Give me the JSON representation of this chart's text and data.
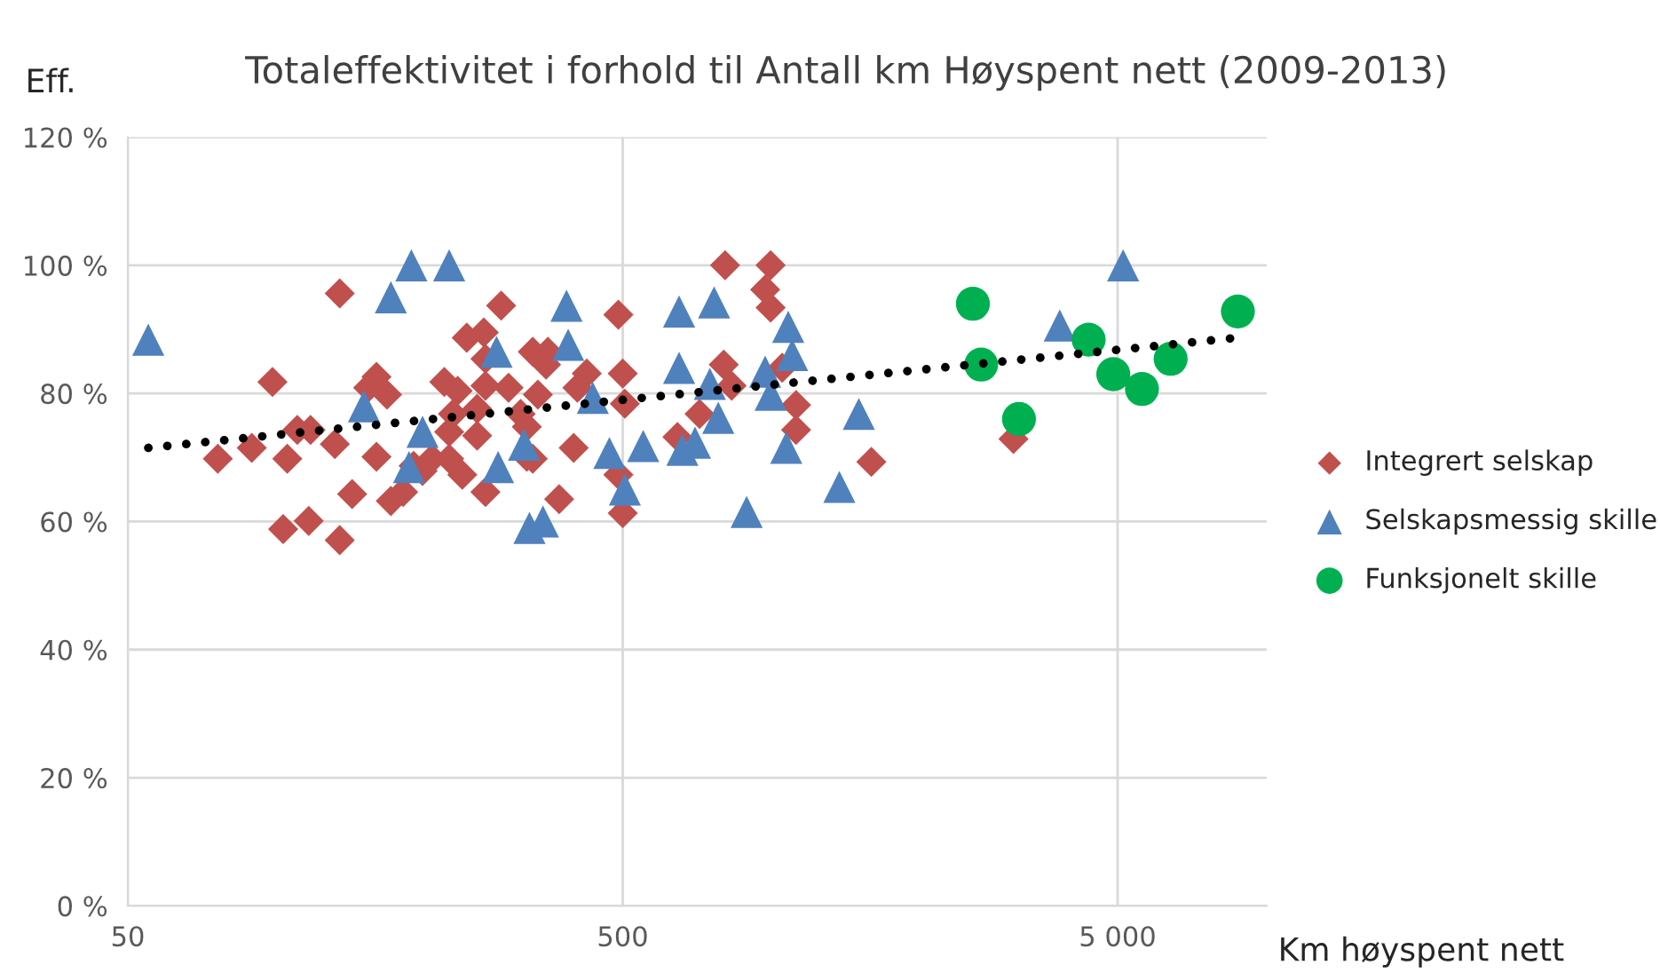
{
  "chart_data": {
    "type": "scatter",
    "title": "Totaleffektivitet i forhold til Antall km Høyspent nett (2009-2013)",
    "xlabel": "Km høyspent nett",
    "ylabel": "Eff.",
    "log": "x",
    "xlim": [
      50,
      10000
    ],
    "xticks": [
      50,
      500,
      {
        "value": 5000,
        "label": "5 000"
      }
    ],
    "ylim": [
      0,
      120
    ],
    "yticks": [
      {
        "value": 0,
        "label": "0 %"
      },
      {
        "value": 20,
        "label": "20 %"
      },
      {
        "value": 40,
        "label": "40 %"
      },
      {
        "value": 60,
        "label": "60 %"
      },
      {
        "value": 80,
        "label": "80 %"
      },
      {
        "value": 100,
        "label": "100 %"
      },
      {
        "value": 120,
        "label": "120 %"
      }
    ],
    "grid": true,
    "legend": "right",
    "series": [
      {
        "name": "Integrert selskap",
        "color": "#c0504d",
        "marker": "diamond",
        "x": [
          134,
          98,
          76,
          89,
          105,
          110,
          117,
          103,
          116,
          134,
          131,
          142,
          159,
          159,
          153,
          167,
          170,
          180,
          189,
          197,
          218,
          232,
          242,
          262,
          284,
          223,
          223,
          237,
          254,
          264,
          264,
          264,
          294,
          311,
          329,
          320,
          337,
          254,
          227,
          206,
          353,
          350,
          320,
          329,
          398,
          423,
          405,
          372,
          490,
          500,
          505,
          490,
          500,
          805,
          995,
          970,
          995,
          800,
          830,
          715,
          645,
          1120,
          1120,
          1590,
          1050,
          3080
        ],
        "values": [
          95.6,
          81.8,
          69.8,
          71.5,
          69.8,
          74.3,
          74.3,
          58.8,
          60.1,
          57.1,
          72.1,
          64.3,
          70.1,
          82.6,
          80.9,
          79.8,
          63.2,
          64.6,
          68.7,
          67.9,
          81.8,
          80.4,
          88.7,
          89.5,
          93.7,
          74,
          69.8,
          67.3,
          73.4,
          64.6,
          85.4,
          81.2,
          80.9,
          76.8,
          86.5,
          70.1,
          79.8,
          77.6,
          76.8,
          69.8,
          86.5,
          84.5,
          74.8,
          69.8,
          71.5,
          83.1,
          80.9,
          63.5,
          92.3,
          83.1,
          78.4,
          67.3,
          61.3,
          100,
          100,
          96.2,
          93.4,
          84.5,
          81.2,
          76.8,
          73.2,
          78.2,
          74.3,
          69.3,
          84,
          72.9
        ]
      },
      {
        "name": "Selskapsmessig skille",
        "color": "#4f81bd",
        "marker": "triangle",
        "x": [
          55,
          187,
          223,
          170,
          150,
          197,
          185,
          280,
          316,
          324,
          345,
          278,
          385,
          388,
          435,
          470,
          505,
          550,
          650,
          765,
          650,
          750,
          660,
          700,
          780,
          890,
          970,
          995,
          1080,
          1100,
          1070,
          1370,
          1500,
          3820,
          5130
        ],
        "values": [
          88.4,
          100,
          100,
          95,
          78,
          74,
          68.5,
          68.5,
          72,
          59,
          60,
          86.5,
          93.7,
          87.6,
          79.3,
          70.7,
          65,
          71.8,
          92.8,
          94.2,
          84,
          81.5,
          71.2,
          72.3,
          76.2,
          61.5,
          83.4,
          79.8,
          90.4,
          86,
          71.5,
          65.4,
          76.8,
          90.6,
          100
        ]
      },
      {
        "name": "Funksjonelt skille",
        "color": "#00b050",
        "marker": "circle",
        "x": [
          2550,
          2650,
          3160,
          4370,
          4900,
          5600,
          6400,
          8750
        ],
        "values": [
          94,
          84.5,
          76,
          88.4,
          83,
          80.7,
          85.4,
          92.8
        ]
      },
      {
        "type": "line",
        "color": "#000000",
        "line_style": "dotted",
        "marker": "none",
        "x": [
          55,
          8750
        ],
        "values": [
          71.5,
          88.7
        ]
      }
    ]
  }
}
